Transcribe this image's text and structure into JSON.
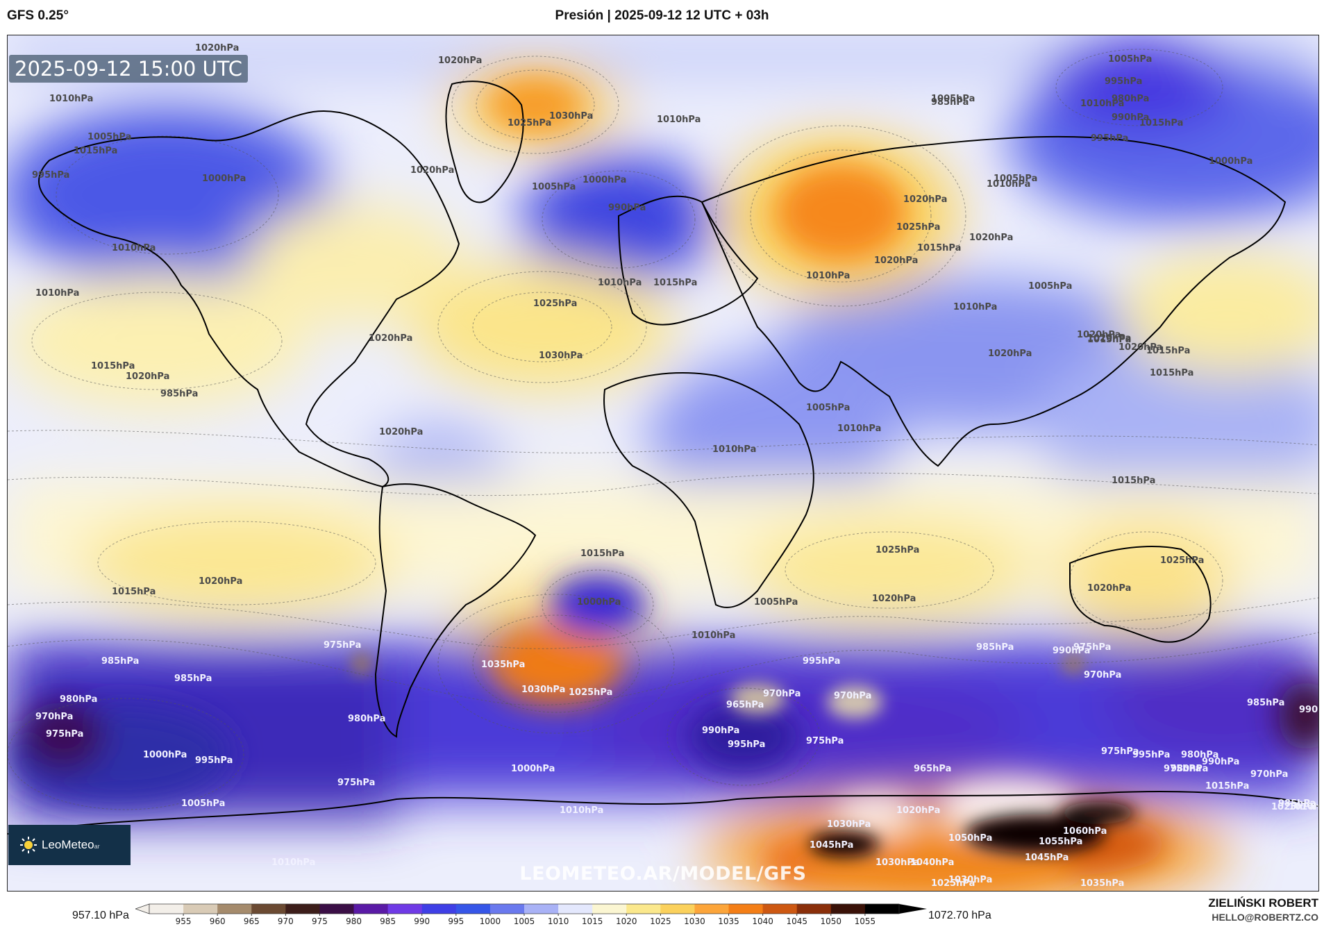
{
  "header": {
    "model": "GFS 0.25°",
    "title": "Presión | 2025-09-12 12 UTC + 03h"
  },
  "map": {
    "timestamp": "2025-09-12 15:00 UTC",
    "watermark": "LEOMETEO.AR/MODEL/GFS",
    "logo": {
      "name": "LeoMeteo",
      "suffix": "ar",
      "icon": "sun-icon"
    },
    "isobar_labels": [
      "1020hPa",
      "1020hPa",
      "1010hPa",
      "1015hPa",
      "1005hPa",
      "995hPa",
      "1000hPa",
      "1010hPa",
      "1010hPa",
      "1025hPa",
      "1030hPa",
      "1010hPa",
      "1020hPa",
      "1005hPa",
      "1000hPa",
      "990hPa",
      "985hPa",
      "1005hPa",
      "995hPa",
      "1010hPa",
      "1015hPa",
      "1005hPa",
      "1020hPa",
      "1025hPa",
      "1015hPa",
      "1010hPa",
      "1025hPa",
      "1030hPa",
      "1020hPa",
      "1015hPa",
      "1020hPa",
      "985hPa",
      "980hPa",
      "990hPa",
      "995hPa",
      "1005hPa",
      "1010hPa",
      "1000hPa",
      "1020hPa",
      "1005hPa",
      "1010hPa",
      "1020hPa",
      "1015hPa",
      "1010hPa",
      "1020hPa",
      "1020hPa",
      "1020hPa",
      "1015hPa",
      "1015hPa",
      "1020hPa",
      "1015hPa",
      "1005hPa",
      "1010hPa",
      "1010hPa",
      "1015hPa",
      "1025hPa",
      "1020hPa",
      "1025hPa",
      "1020hPa",
      "1020hPa",
      "1015hPa",
      "1015hPa",
      "1000hPa",
      "1005hPa",
      "1020hPa",
      "1035hPa",
      "1030hPa",
      "1025hPa",
      "1010hPa",
      "995hPa",
      "990hPa",
      "975hPa",
      "985hPa",
      "985hPa",
      "980hPa",
      "970hPa",
      "975hPa",
      "1000hPa",
      "995hPa",
      "980hPa",
      "975hPa",
      "965hPa",
      "970hPa",
      "975hPa",
      "970hPa",
      "965hPa",
      "975hPa",
      "990hPa",
      "985hPa",
      "975hPa",
      "970hPa",
      "985hPa",
      "980hPa",
      "990hPa",
      "975hPa",
      "970hPa",
      "995hPa",
      "980hPa",
      "985hPa",
      "1015hPa",
      "1010hPa",
      "1025hPa",
      "1030hPa",
      "1045hPa",
      "1050hPa",
      "1060hPa",
      "1055hPa",
      "1045hPa",
      "1040hPa",
      "1030hPa",
      "1035hPa",
      "1020hPa",
      "1030hPa",
      "1025hPa",
      "990hPa",
      "995hPa",
      "1000hPa",
      "1010hPa",
      "1010hPa",
      "985hPa",
      "990hPa",
      "1005hPa"
    ]
  },
  "colorbar": {
    "min_label": "957.10 hPa",
    "max_label": "1072.70 hPa",
    "ticks": [
      "955",
      "960",
      "965",
      "970",
      "975",
      "980",
      "985",
      "990",
      "995",
      "1000",
      "1005",
      "1010",
      "1015",
      "1020",
      "1025",
      "1030",
      "1035",
      "1040",
      "1045",
      "1050",
      "1055"
    ],
    "colors": [
      "#f3efe9",
      "#d9cbb6",
      "#a58b6c",
      "#6b4a32",
      "#3d1e1a",
      "#3b0f46",
      "#5a1aa6",
      "#6f3ae6",
      "#3f3fe6",
      "#3656e8",
      "#6a79ee",
      "#a9b2f6",
      "#e4e8fd",
      "#fbf6d2",
      "#fbe88c",
      "#fbd15c",
      "#fca53a",
      "#f47e16",
      "#cd5812",
      "#8a2f0a",
      "#3a1208",
      "#000000"
    ]
  },
  "footer": {
    "author": "ZIELIŃSKI ROBERT",
    "email": "HELLO@ROBERTZ.CO"
  }
}
